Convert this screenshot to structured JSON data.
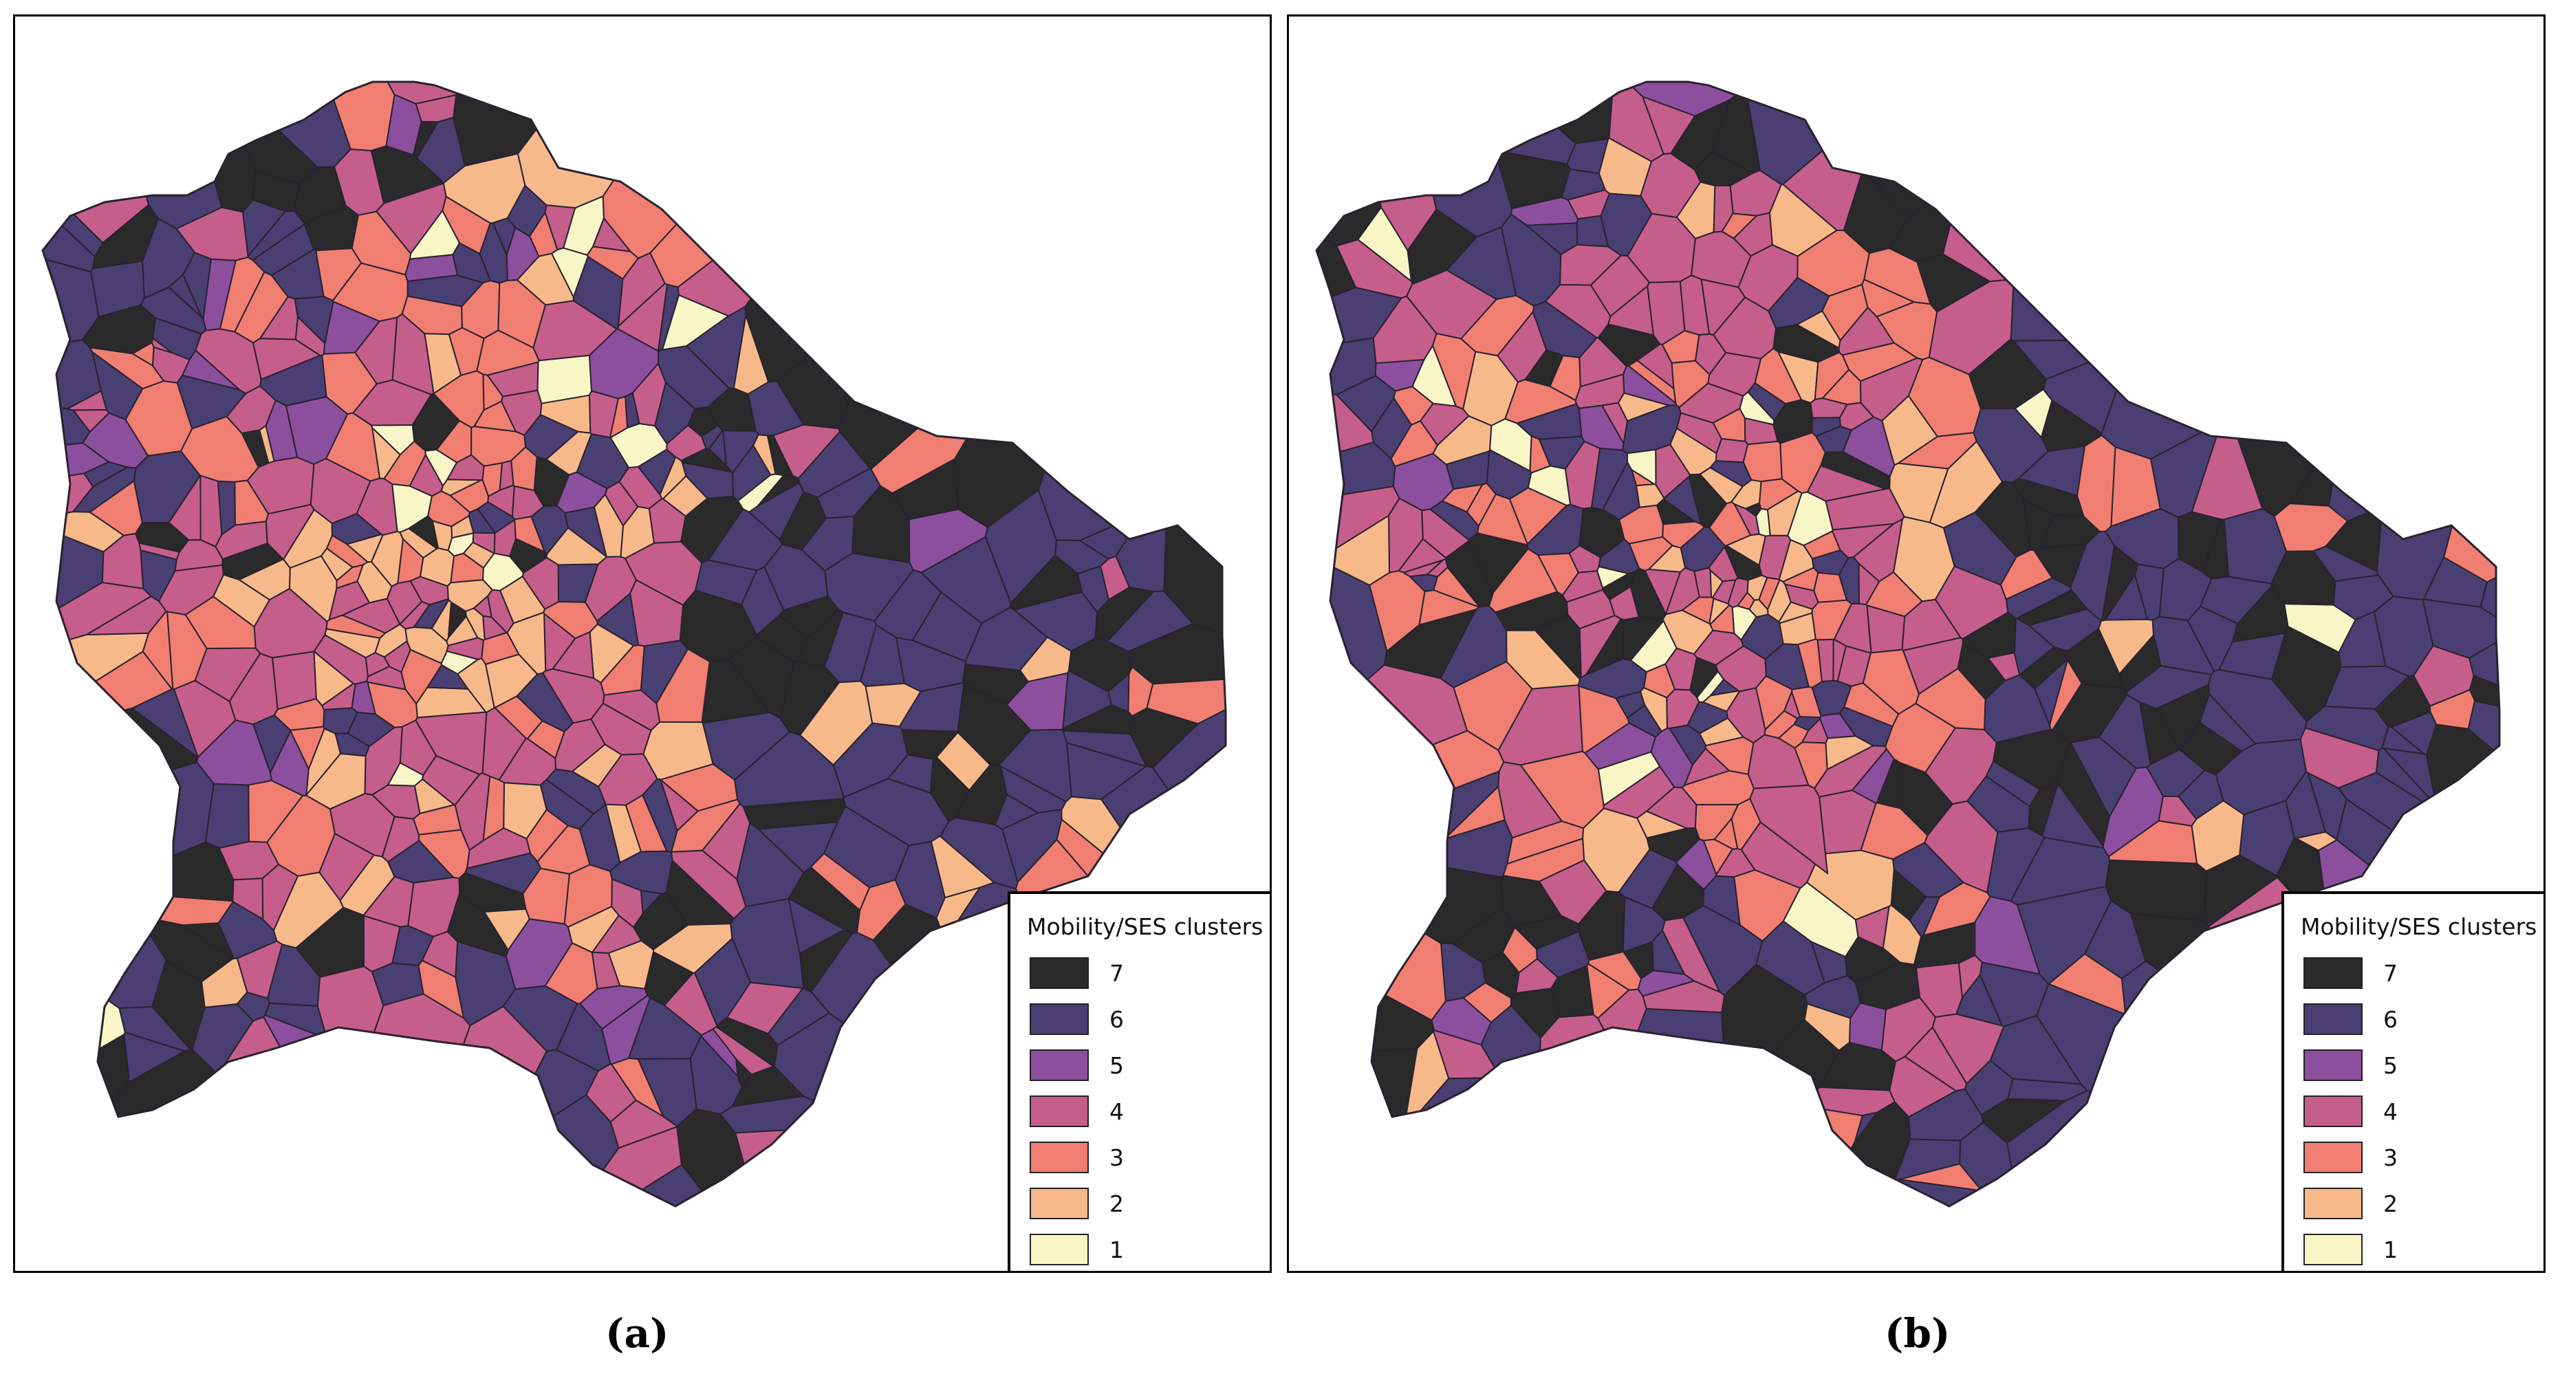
{
  "legend": {
    "title": "Mobility/SES clusters",
    "items": [
      {
        "label": "7",
        "color": "#2a2a2a"
      },
      {
        "label": "6",
        "color": "#4a3f72"
      },
      {
        "label": "5",
        "color": "#8c4f9e"
      },
      {
        "label": "4",
        "color": "#c65e8c"
      },
      {
        "label": "3",
        "color": "#f07f72"
      },
      {
        "label": "2",
        "color": "#f8b98a"
      },
      {
        "label": "1",
        "color": "#f8f6c6"
      }
    ]
  },
  "panels": [
    {
      "id": "a",
      "caption": "(a)"
    },
    {
      "id": "b",
      "caption": "(b)"
    }
  ],
  "map_style": {
    "cell_border_color": "#2a2230",
    "background": "#ffffff"
  }
}
